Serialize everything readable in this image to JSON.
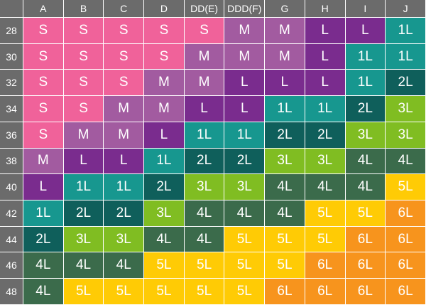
{
  "table": {
    "columns": [
      "A",
      "B",
      "C",
      "D",
      "DD(E)",
      "DDD(F)",
      "G",
      "H",
      "I",
      "J"
    ],
    "rows": [
      {
        "label": "28",
        "cells": [
          "S",
          "S",
          "S",
          "S",
          "S",
          "M",
          "M",
          "L",
          "L",
          "1L"
        ]
      },
      {
        "label": "30",
        "cells": [
          "S",
          "S",
          "S",
          "S",
          "M",
          "M",
          "M",
          "L",
          "1L",
          "1L"
        ]
      },
      {
        "label": "32",
        "cells": [
          "S",
          "S",
          "S",
          "M",
          "M",
          "L",
          "L",
          "L",
          "1L",
          "2L"
        ]
      },
      {
        "label": "34",
        "cells": [
          "S",
          "S",
          "M",
          "M",
          "L",
          "L",
          "1L",
          "1L",
          "2L",
          "3L"
        ]
      },
      {
        "label": "36",
        "cells": [
          "S",
          "M",
          "M",
          "L",
          "1L",
          "1L",
          "2L",
          "2L",
          "3L",
          "3L"
        ]
      },
      {
        "label": "38",
        "cells": [
          "M",
          "L",
          "L",
          "1L",
          "2L",
          "2L",
          "3L",
          "3L",
          "4L",
          "4L"
        ]
      },
      {
        "label": "40",
        "cells": [
          "L",
          "1L",
          "1L",
          "2L",
          "3L",
          "3L",
          "4L",
          "4L",
          "4L",
          "5L"
        ]
      },
      {
        "label": "42",
        "cells": [
          "1L",
          "2L",
          "2L",
          "3L",
          "4L",
          "4L",
          "4L",
          "5L",
          "5L",
          "6L"
        ]
      },
      {
        "label": "44",
        "cells": [
          "2L",
          "3L",
          "3L",
          "4L",
          "4L",
          "5L",
          "5L",
          "5L",
          "6L",
          "6L"
        ]
      },
      {
        "label": "46",
        "cells": [
          "4L",
          "4L",
          "4L",
          "5L",
          "5L",
          "5L",
          "5L",
          "6L",
          "6L",
          "6L"
        ]
      },
      {
        "label": "48",
        "cells": [
          "4L",
          "5L",
          "5L",
          "5L",
          "5L",
          "5L",
          "6L",
          "6L",
          "6L",
          "6L"
        ]
      }
    ],
    "colors": {
      "S": "#f0629a",
      "M": "#a25ba0",
      "L": "#7a2c8e",
      "1L": "#17978f",
      "2L": "#0f5f5b",
      "3L": "#80bd22",
      "4L": "#3b6b4b",
      "5L": "#ffcb05",
      "6L": "#f7941d"
    }
  }
}
